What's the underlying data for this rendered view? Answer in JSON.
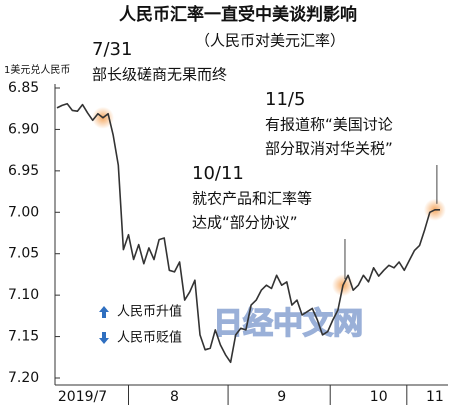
{
  "chart_data": {
    "type": "line",
    "title": "人民币汇率一直受中美谈判影响",
    "subtitle": "（人民币对美元汇率）",
    "y_axis_label": "1美元兑人民币",
    "color": "#333333",
    "y_reversed": true,
    "ylim": [
      6.85,
      7.2
    ],
    "yticks": [
      6.85,
      {
        "value": 6.9,
        "label": "6.90"
      },
      6.95,
      {
        "value": 7.0,
        "label": "7.00"
      },
      7.05,
      {
        "value": 7.1,
        "label": "7.10"
      },
      7.15,
      {
        "value": 7.2,
        "label": "7.20"
      }
    ],
    "categories": [
      null,
      null,
      null,
      null,
      null,
      "2019/7",
      null,
      null,
      null,
      null,
      null,
      null,
      null,
      null,
      null,
      null,
      null,
      null,
      null,
      null,
      null,
      null,
      null,
      "8",
      null,
      null,
      null,
      null,
      null,
      null,
      null,
      null,
      null,
      null,
      null,
      null,
      null,
      null,
      null,
      null,
      null,
      null,
      null,
      null,
      "9",
      null,
      null,
      null,
      null,
      null,
      null,
      null,
      null,
      null,
      null,
      null,
      null,
      null,
      null,
      null,
      null,
      null,
      null,
      "10",
      null,
      null,
      null,
      null,
      null,
      null,
      null,
      null,
      null,
      null,
      "11",
      null
    ],
    "values": [
      6.874,
      6.871,
      6.869,
      6.877,
      6.878,
      6.87,
      6.88,
      6.889,
      6.881,
      6.886,
      6.881,
      6.907,
      6.943,
      7.045,
      7.027,
      7.057,
      7.039,
      7.062,
      7.043,
      7.057,
      7.033,
      7.031,
      7.07,
      7.072,
      7.06,
      7.106,
      7.096,
      7.082,
      7.148,
      7.166,
      7.164,
      7.142,
      7.16,
      7.172,
      7.181,
      7.148,
      7.14,
      7.142,
      7.112,
      7.106,
      7.094,
      7.088,
      7.092,
      7.076,
      7.088,
      7.084,
      7.112,
      7.106,
      7.124,
      7.12,
      7.116,
      7.13,
      7.148,
      7.144,
      7.13,
      7.118,
      7.088,
      7.076,
      7.094,
      7.088,
      7.076,
      7.084,
      7.067,
      7.077,
      7.07,
      7.064,
      7.067,
      7.06,
      7.07,
      7.058,
      7.046,
      7.04,
      7.021,
      7.0,
      6.997,
      6.997
    ],
    "annotations": [
      {
        "date": "7/31",
        "lines": [
          "部长级磋商无果而终"
        ]
      },
      {
        "date": "10/11",
        "lines": [
          "就农产品和汇率等",
          "达成“部分协议”"
        ]
      },
      {
        "date": "11/5",
        "lines": [
          "有报道称“美国讨论",
          "部分取消对华关税”"
        ]
      }
    ],
    "legend_notes": [
      "人民币升值",
      "人民币贬值"
    ],
    "watermark": "日经中文网"
  }
}
